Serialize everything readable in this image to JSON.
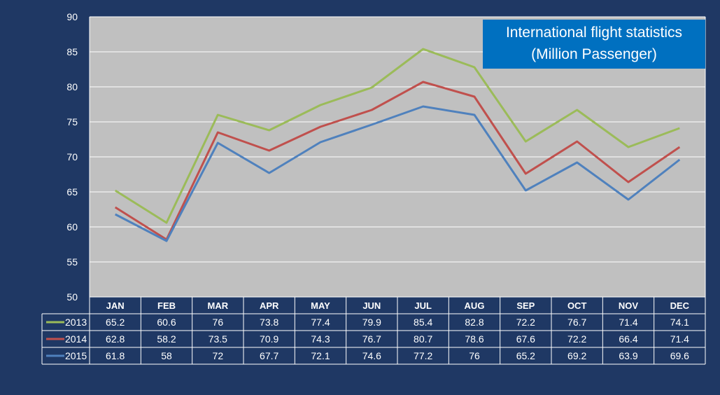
{
  "chart_data": {
    "type": "line",
    "title": "International flight statistics",
    "subtitle": "(Million Passenger)",
    "xlabel": "",
    "ylabel": "",
    "categories": [
      "JAN",
      "FEB",
      "MAR",
      "APR",
      "MAY",
      "JUN",
      "JUL",
      "AUG",
      "SEP",
      "OCT",
      "NOV",
      "DEC"
    ],
    "ylim": [
      50,
      90
    ],
    "yticks": [
      "50",
      "55",
      "60",
      "65",
      "70",
      "75",
      "80",
      "85",
      "90"
    ],
    "grid": true,
    "legend": "data-table",
    "series": [
      {
        "name": "2013",
        "color": "#9bbb59",
        "values": [
          65.2,
          60.6,
          76,
          73.8,
          77.4,
          79.9,
          85.4,
          82.8,
          72.2,
          76.7,
          71.4,
          74.1
        ]
      },
      {
        "name": "2014",
        "color": "#c0504d",
        "values": [
          62.8,
          58.2,
          73.5,
          70.9,
          74.3,
          76.7,
          80.7,
          78.6,
          67.6,
          72.2,
          66.4,
          71.4
        ]
      },
      {
        "name": "2015",
        "color": "#4f81bd",
        "values": [
          61.8,
          58,
          72,
          67.7,
          72.1,
          74.6,
          77.2,
          76,
          65.2,
          69.2,
          63.9,
          69.6
        ]
      }
    ]
  }
}
